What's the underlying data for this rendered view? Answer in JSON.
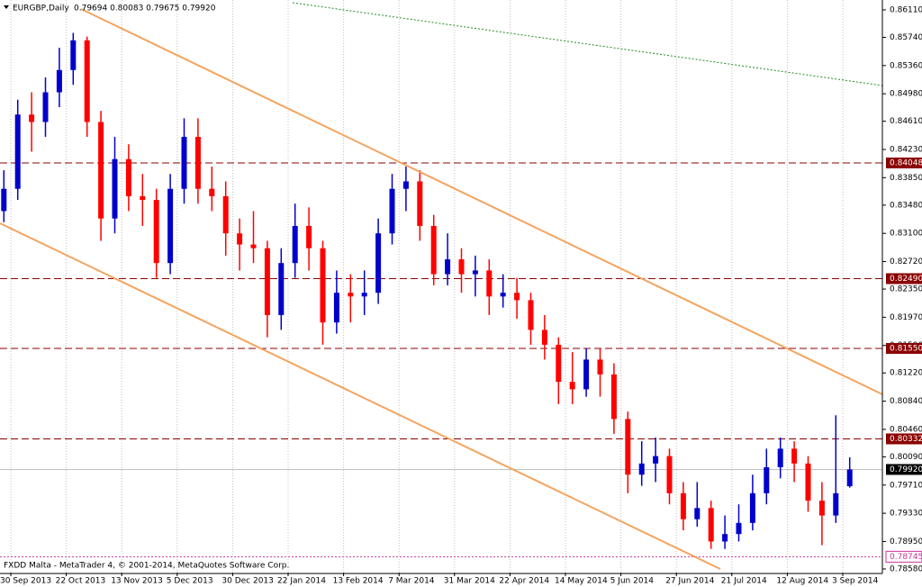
{
  "header": {
    "title": "EURGBP,Daily",
    "quote": "0.79694 0.80083 0.79675 0.79920"
  },
  "footer": "FXDD Malta - MetaTrader 4, © 2001-2014, MetaQuotes Software Corp.",
  "chart_data": {
    "type": "candlestick",
    "up_color": "#0000cc",
    "down_color": "#ff0000",
    "open": [
      0.834,
      0.837,
      0.847,
      0.846,
      0.85,
      0.853,
      0.857,
      0.846,
      0.833,
      0.841,
      0.836,
      0.8355,
      0.827,
      0.837,
      0.844,
      0.837,
      0.836,
      0.831,
      0.8295,
      0.829,
      0.82,
      0.827,
      0.832,
      0.829,
      0.819,
      0.823,
      0.8225,
      0.823,
      0.831,
      0.837,
      0.838,
      0.832,
      0.8255,
      0.8275,
      0.8255,
      0.826,
      0.8225,
      0.823,
      0.822,
      0.818,
      0.816,
      0.811,
      0.81,
      0.814,
      0.812,
      0.806,
      0.7985,
      0.8,
      0.801,
      0.796,
      0.7925,
      0.794,
      0.7895,
      0.7905,
      0.792,
      0.796,
      0.7995,
      0.802,
      0.8,
      0.795,
      0.793,
      0.79694
    ],
    "high": [
      0.8395,
      0.849,
      0.85,
      0.852,
      0.856,
      0.858,
      0.8575,
      0.8475,
      0.844,
      0.843,
      0.839,
      0.837,
      0.839,
      0.8465,
      0.8465,
      0.84,
      0.838,
      0.833,
      0.834,
      0.83,
      0.829,
      0.835,
      0.8345,
      0.83,
      0.826,
      0.8255,
      0.826,
      0.833,
      0.839,
      0.84,
      0.8395,
      0.8335,
      0.831,
      0.829,
      0.828,
      0.8275,
      0.8255,
      0.825,
      0.823,
      0.82,
      0.817,
      0.815,
      0.8155,
      0.8155,
      0.8135,
      0.807,
      0.803,
      0.8035,
      0.802,
      0.7975,
      0.7975,
      0.795,
      0.793,
      0.7945,
      0.7985,
      0.802,
      0.8035,
      0.803,
      0.801,
      0.7975,
      0.8065,
      0.80083
    ],
    "low": [
      0.8325,
      0.8355,
      0.842,
      0.844,
      0.848,
      0.851,
      0.844,
      0.83,
      0.831,
      0.834,
      0.832,
      0.825,
      0.8255,
      0.835,
      0.835,
      0.834,
      0.828,
      0.826,
      0.827,
      0.817,
      0.818,
      0.825,
      0.826,
      0.816,
      0.8175,
      0.819,
      0.82,
      0.8215,
      0.8295,
      0.834,
      0.83,
      0.824,
      0.824,
      0.823,
      0.8225,
      0.82,
      0.821,
      0.8195,
      0.816,
      0.814,
      0.808,
      0.808,
      0.809,
      0.809,
      0.804,
      0.796,
      0.797,
      0.7975,
      0.7945,
      0.791,
      0.7915,
      0.7885,
      0.7885,
      0.7895,
      0.791,
      0.7945,
      0.798,
      0.7975,
      0.7935,
      0.789,
      0.792,
      0.79675
    ],
    "close": [
      0.837,
      0.847,
      0.846,
      0.85,
      0.853,
      0.857,
      0.846,
      0.833,
      0.841,
      0.836,
      0.8355,
      0.827,
      0.837,
      0.844,
      0.837,
      0.836,
      0.831,
      0.8295,
      0.829,
      0.82,
      0.827,
      0.832,
      0.829,
      0.819,
      0.823,
      0.8225,
      0.823,
      0.831,
      0.837,
      0.838,
      0.832,
      0.8255,
      0.8275,
      0.8255,
      0.826,
      0.8225,
      0.823,
      0.822,
      0.818,
      0.816,
      0.811,
      0.81,
      0.814,
      0.812,
      0.806,
      0.7985,
      0.8,
      0.801,
      0.796,
      0.7925,
      0.794,
      0.7895,
      0.7905,
      0.792,
      0.796,
      0.7995,
      0.802,
      0.8,
      0.795,
      0.793,
      0.796,
      0.7992
    ],
    "ylim": [
      0.78531,
      0.86243
    ],
    "yticks": [
      {
        "value": 0.8611,
        "label": "0.86110"
      },
      {
        "value": 0.8574,
        "label": "0.85740"
      },
      {
        "value": 0.8536,
        "label": "0.85360"
      },
      {
        "value": 0.8498,
        "label": "0.84980"
      },
      {
        "value": 0.8461,
        "label": "0.84610"
      },
      {
        "value": 0.8423,
        "label": "0.84230"
      },
      {
        "value": 0.8385,
        "label": "0.83850"
      },
      {
        "value": 0.8348,
        "label": "0.83480"
      },
      {
        "value": 0.831,
        "label": "0.83100"
      },
      {
        "value": 0.8272,
        "label": "0.82720"
      },
      {
        "value": 0.8235,
        "label": "0.82350"
      },
      {
        "value": 0.8197,
        "label": "0.81970"
      },
      {
        "value": 0.8159,
        "label": "0.81590"
      },
      {
        "value": 0.8122,
        "label": "0.81220"
      },
      {
        "value": 0.8084,
        "label": "0.80840"
      },
      {
        "value": 0.8046,
        "label": "0.80460"
      },
      {
        "value": 0.8009,
        "label": "0.80090"
      },
      {
        "value": 0.7971,
        "label": "0.79710"
      },
      {
        "value": 0.7933,
        "label": "0.79330"
      },
      {
        "value": 0.7895,
        "label": "0.78950"
      },
      {
        "value": 0.7858,
        "label": "0.78580"
      }
    ],
    "xticks": [
      {
        "value": 0.5,
        "label": "30 Sep 2013"
      },
      {
        "value": 4.5,
        "label": "22 Oct 2013"
      },
      {
        "value": 8.5,
        "label": "13 Nov 2013"
      },
      {
        "value": 12.5,
        "label": "5 Dec 2013"
      },
      {
        "value": 16.5,
        "label": "30 Dec 2013"
      },
      {
        "value": 20.5,
        "label": "22 Jan 2014"
      },
      {
        "value": 24.5,
        "label": "13 Feb 2014"
      },
      {
        "value": 28.5,
        "label": "7 Mar 2014"
      },
      {
        "value": 32.5,
        "label": "31 Mar 2014"
      },
      {
        "value": 36.5,
        "label": "22 Apr 2014"
      },
      {
        "value": 40.5,
        "label": "14 May 2014"
      },
      {
        "value": 44.5,
        "label": "5 Jun 2014"
      },
      {
        "value": 48.5,
        "label": "27 Jun 2014"
      },
      {
        "value": 52.5,
        "label": "21 Jul 2014"
      },
      {
        "value": 56.5,
        "label": "12 Aug 2014"
      },
      {
        "value": 60.5,
        "label": "3 Sep 2014"
      }
    ],
    "levels": [
      0.84048,
      {
        "value": 0.8249,
        "label": "0.82490"
      },
      {
        "value": 0.8155,
        "label": "0.81550"
      },
      0.80332
    ],
    "level_color": "#8b0000",
    "bid": {
      "value": 0.7992,
      "label": "0.79920"
    },
    "ask_line": 0.78745,
    "grid": true
  }
}
